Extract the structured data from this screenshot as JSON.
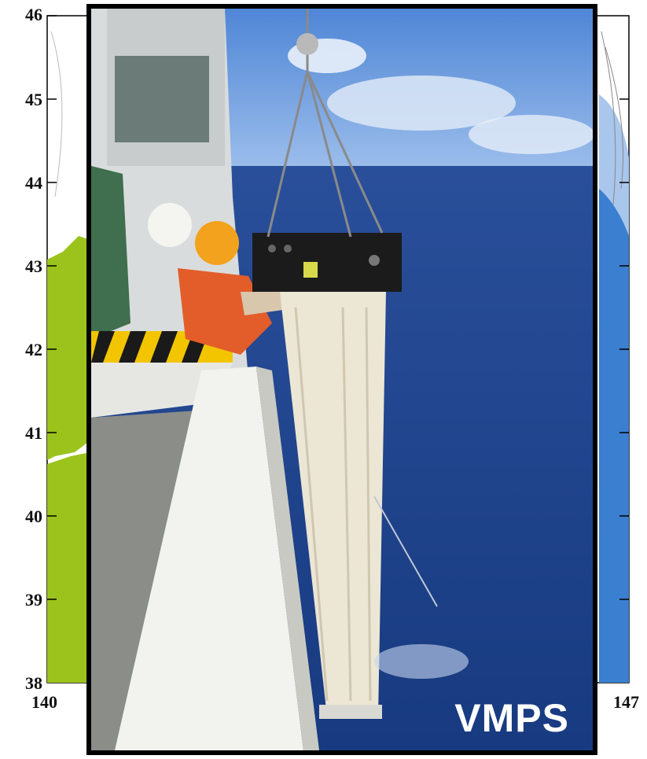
{
  "map": {
    "lat_labels": [
      "46",
      "45",
      "44",
      "43",
      "42",
      "41",
      "40",
      "39",
      "38"
    ],
    "lon_labels": [
      "140",
      "147"
    ],
    "land_color": "#9cc31b",
    "ocean_color": "#3a7fd0"
  },
  "photo": {
    "label": "VMPS"
  }
}
